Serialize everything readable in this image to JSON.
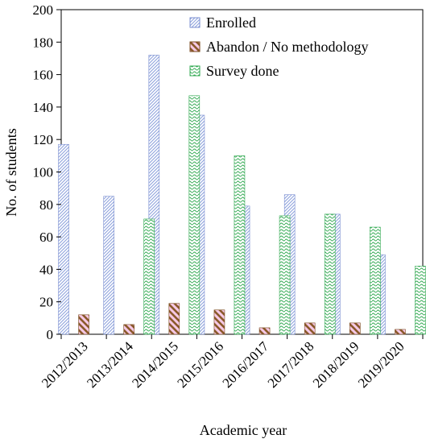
{
  "chart_data": {
    "type": "bar",
    "title": "",
    "xlabel": "Academic year",
    "ylabel": "No. of students",
    "ylim": [
      0,
      200
    ],
    "yticks": [
      0,
      20,
      40,
      60,
      80,
      100,
      120,
      140,
      160,
      180,
      200
    ],
    "grid": false,
    "legend_position": "top-right",
    "categories": [
      "2012/2013",
      "2013/2014",
      "2014/2015",
      "2015/2016",
      "2016/2017",
      "2017/2018",
      "2018/2019",
      "2019/2020"
    ],
    "series": [
      {
        "name": "Enrolled",
        "color": "#a9b8e6",
        "pattern": "diagonal-hatch-blue",
        "values": [
          117,
          85,
          172,
          135,
          79,
          86,
          74,
          49
        ]
      },
      {
        "name": "Abandon / No methodology",
        "color": "#b87333",
        "pattern": "diagonal-stripe-brown-pink",
        "values": [
          12,
          6,
          19,
          15,
          4,
          7,
          7,
          3
        ]
      },
      {
        "name": "Survey done",
        "color": "#7fd07f",
        "pattern": "wave-green",
        "values": [
          0,
          71,
          147,
          110,
          73,
          74,
          66,
          42
        ]
      }
    ]
  }
}
